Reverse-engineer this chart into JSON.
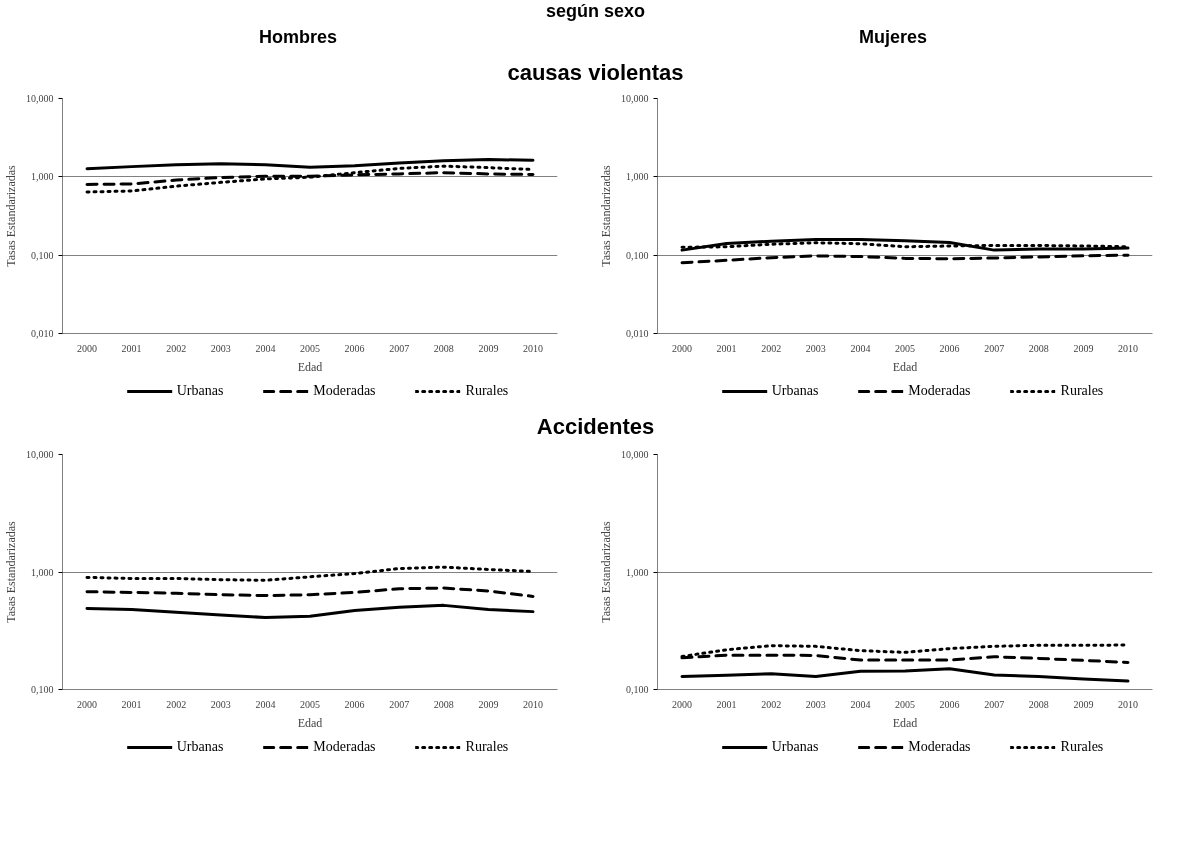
{
  "chart_data": [
    {
      "type": "line",
      "title": "Hombres",
      "annotations": [
        "según sexo",
        "causas violentas"
      ],
      "xlabel": "Edad",
      "ylabel": "Tasas Estandarizadas",
      "categories": [
        "2000",
        "2001",
        "2002",
        "2003",
        "2004",
        "2005",
        "2006",
        "2007",
        "2008",
        "2009",
        "2010"
      ],
      "log": true,
      "ylim": [
        0.01,
        10
      ],
      "yticks": [
        {
          "value": 0.01,
          "label": "0,010"
        },
        {
          "value": 0.1,
          "label": "0,100"
        },
        {
          "value": 1,
          "label": "1,000"
        },
        {
          "value": 10,
          "label": "10,000"
        }
      ],
      "grid": "y",
      "legend": "bottom",
      "series": [
        {
          "name": "Urbanas",
          "color": "#000000",
          "line_style": "solid",
          "values": [
            1.27,
            1.35,
            1.43,
            1.47,
            1.43,
            1.33,
            1.39,
            1.5,
            1.61,
            1.66,
            1.63
          ]
        },
        {
          "name": "Moderadas",
          "color": "#000000",
          "line_style": "dashed",
          "values": [
            0.8,
            0.81,
            0.91,
            0.98,
            1.02,
            1.02,
            1.06,
            1.09,
            1.13,
            1.09,
            1.07
          ]
        },
        {
          "name": "Rurales",
          "color": "#000000",
          "line_style": "dotted",
          "values": [
            0.64,
            0.66,
            0.76,
            0.85,
            0.94,
            0.99,
            1.13,
            1.28,
            1.37,
            1.31,
            1.24
          ]
        }
      ]
    },
    {
      "type": "line",
      "title": "Mujeres",
      "xlabel": "Edad",
      "ylabel": "Tasas Estandarizadas",
      "categories": [
        "2000",
        "2001",
        "2002",
        "2003",
        "2004",
        "2005",
        "2006",
        "2007",
        "2008",
        "2009",
        "2010"
      ],
      "log": true,
      "ylim": [
        0.01,
        10
      ],
      "yticks": [
        {
          "value": 0.01,
          "label": "0,010"
        },
        {
          "value": 0.1,
          "label": "0,100"
        },
        {
          "value": 1,
          "label": "1,000"
        },
        {
          "value": 10,
          "label": "10,000"
        }
      ],
      "grid": "y",
      "legend": "bottom",
      "series": [
        {
          "name": "Urbanas",
          "color": "#000000",
          "line_style": "solid",
          "values": [
            0.116,
            0.141,
            0.151,
            0.159,
            0.159,
            0.153,
            0.145,
            0.116,
            0.12,
            0.12,
            0.123
          ]
        },
        {
          "name": "Moderadas",
          "color": "#000000",
          "line_style": "dashed",
          "values": [
            0.08,
            0.086,
            0.093,
            0.098,
            0.096,
            0.091,
            0.09,
            0.092,
            0.095,
            0.098,
            0.1
          ]
        },
        {
          "name": "Rurales",
          "color": "#000000",
          "line_style": "dotted",
          "values": [
            0.126,
            0.128,
            0.138,
            0.144,
            0.14,
            0.128,
            0.131,
            0.133,
            0.133,
            0.131,
            0.128
          ]
        }
      ]
    },
    {
      "type": "line",
      "annotations": [
        "Accidentes"
      ],
      "xlabel": "Edad",
      "ylabel": "Tasas Estandarizadas",
      "categories": [
        "2000",
        "2001",
        "2002",
        "2003",
        "2004",
        "2005",
        "2006",
        "2007",
        "2008",
        "2009",
        "2010"
      ],
      "log": true,
      "ylim": [
        0.1,
        10
      ],
      "yticks": [
        {
          "value": 0.1,
          "label": "0,100"
        },
        {
          "value": 1,
          "label": "1,000"
        },
        {
          "value": 10,
          "label": "10,000"
        }
      ],
      "grid": "y",
      "legend": "bottom",
      "series": [
        {
          "name": "Urbanas",
          "color": "#000000",
          "line_style": "solid",
          "values": [
            0.49,
            0.48,
            0.455,
            0.43,
            0.41,
            0.42,
            0.47,
            0.5,
            0.52,
            0.48,
            0.46
          ]
        },
        {
          "name": "Moderadas",
          "color": "#000000",
          "line_style": "dashed",
          "values": [
            0.68,
            0.67,
            0.66,
            0.64,
            0.63,
            0.64,
            0.67,
            0.72,
            0.73,
            0.69,
            0.62
          ]
        },
        {
          "name": "Rurales",
          "color": "#000000",
          "line_style": "dotted",
          "values": [
            0.9,
            0.88,
            0.88,
            0.86,
            0.85,
            0.91,
            0.97,
            1.07,
            1.1,
            1.05,
            1.01
          ]
        }
      ]
    },
    {
      "type": "line",
      "xlabel": "Edad",
      "ylabel": "Tasas Estandarizadas",
      "categories": [
        "2000",
        "2001",
        "2002",
        "2003",
        "2004",
        "2005",
        "2006",
        "2007",
        "2008",
        "2009",
        "2010"
      ],
      "log": true,
      "ylim": [
        0.1,
        10
      ],
      "yticks": [
        {
          "value": 0.1,
          "label": "0,100"
        },
        {
          "value": 1,
          "label": "1,000"
        },
        {
          "value": 10,
          "label": "10,000"
        }
      ],
      "grid": "y",
      "legend": "bottom",
      "series": [
        {
          "name": "Urbanas",
          "color": "#000000",
          "line_style": "solid",
          "values": [
            0.129,
            0.132,
            0.136,
            0.129,
            0.143,
            0.144,
            0.15,
            0.133,
            0.129,
            0.123,
            0.118
          ]
        },
        {
          "name": "Moderadas",
          "color": "#000000",
          "line_style": "dashed",
          "values": [
            0.186,
            0.196,
            0.196,
            0.195,
            0.178,
            0.178,
            0.178,
            0.19,
            0.184,
            0.177,
            0.17
          ]
        },
        {
          "name": "Rurales",
          "color": "#000000",
          "line_style": "dotted",
          "values": [
            0.191,
            0.218,
            0.236,
            0.233,
            0.214,
            0.207,
            0.223,
            0.233,
            0.238,
            0.238,
            0.239
          ]
        }
      ]
    }
  ]
}
